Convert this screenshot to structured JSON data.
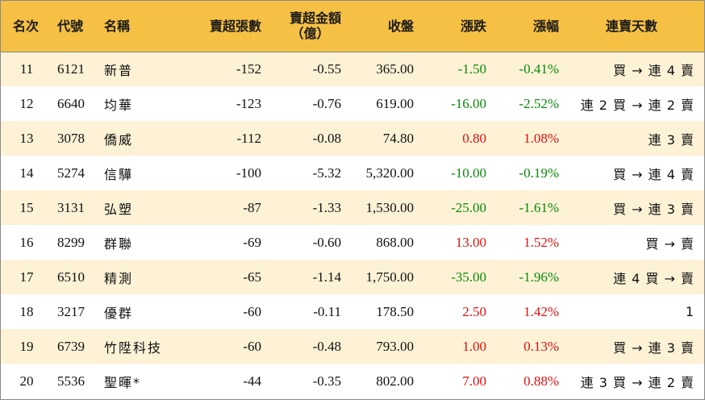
{
  "header": {
    "rank": "名次",
    "code": "代號",
    "name": "名稱",
    "sell_lots": "賣超張數",
    "sell_amount_line1": "賣超金額",
    "sell_amount_line2": "（億）",
    "close": "收盤",
    "change": "漲跌",
    "change_pct": "漲幅",
    "streak": "連賣天數"
  },
  "colors": {
    "header_bg": "#f5c043",
    "row_alt_bg": "#fdf2d6",
    "up": "#e01010",
    "down": "#0a8a0a"
  },
  "rows": [
    {
      "rank": "11",
      "code": "6121",
      "name": "新普",
      "sell_lots": "-152",
      "sell_amount": "-0.55",
      "close": "365.00",
      "change": "-1.50",
      "change_pct": "-0.41%",
      "dir": "down",
      "streak": "買 → 連 4 賣"
    },
    {
      "rank": "12",
      "code": "6640",
      "name": "均華",
      "sell_lots": "-123",
      "sell_amount": "-0.76",
      "close": "619.00",
      "change": "-16.00",
      "change_pct": "-2.52%",
      "dir": "down",
      "streak": "連 2 買 → 連 2 賣"
    },
    {
      "rank": "13",
      "code": "3078",
      "name": "僑威",
      "sell_lots": "-112",
      "sell_amount": "-0.08",
      "close": "74.80",
      "change": "0.80",
      "change_pct": "1.08%",
      "dir": "up",
      "streak": "連 3 賣"
    },
    {
      "rank": "14",
      "code": "5274",
      "name": "信驊",
      "sell_lots": "-100",
      "sell_amount": "-5.32",
      "close": "5,320.00",
      "change": "-10.00",
      "change_pct": "-0.19%",
      "dir": "down",
      "streak": "買 → 連 4 賣"
    },
    {
      "rank": "15",
      "code": "3131",
      "name": "弘塑",
      "sell_lots": "-87",
      "sell_amount": "-1.33",
      "close": "1,530.00",
      "change": "-25.00",
      "change_pct": "-1.61%",
      "dir": "down",
      "streak": "買 → 連 3 賣"
    },
    {
      "rank": "16",
      "code": "8299",
      "name": "群聯",
      "sell_lots": "-69",
      "sell_amount": "-0.60",
      "close": "868.00",
      "change": "13.00",
      "change_pct": "1.52%",
      "dir": "up",
      "streak": "買 → 賣"
    },
    {
      "rank": "17",
      "code": "6510",
      "name": "精測",
      "sell_lots": "-65",
      "sell_amount": "-1.14",
      "close": "1,750.00",
      "change": "-35.00",
      "change_pct": "-1.96%",
      "dir": "down",
      "streak": "連 4 買 → 賣"
    },
    {
      "rank": "18",
      "code": "3217",
      "name": "優群",
      "sell_lots": "-60",
      "sell_amount": "-0.11",
      "close": "178.50",
      "change": "2.50",
      "change_pct": "1.42%",
      "dir": "up",
      "streak": "1"
    },
    {
      "rank": "19",
      "code": "6739",
      "name": "竹陞科技",
      "sell_lots": "-60",
      "sell_amount": "-0.48",
      "close": "793.00",
      "change": "1.00",
      "change_pct": "0.13%",
      "dir": "up",
      "streak": "買 → 連 3 賣"
    },
    {
      "rank": "20",
      "code": "5536",
      "name": "聖暉*",
      "sell_lots": "-44",
      "sell_amount": "-0.35",
      "close": "802.00",
      "change": "7.00",
      "change_pct": "0.88%",
      "dir": "up",
      "streak": "連 3 買 → 連 2 賣"
    }
  ]
}
